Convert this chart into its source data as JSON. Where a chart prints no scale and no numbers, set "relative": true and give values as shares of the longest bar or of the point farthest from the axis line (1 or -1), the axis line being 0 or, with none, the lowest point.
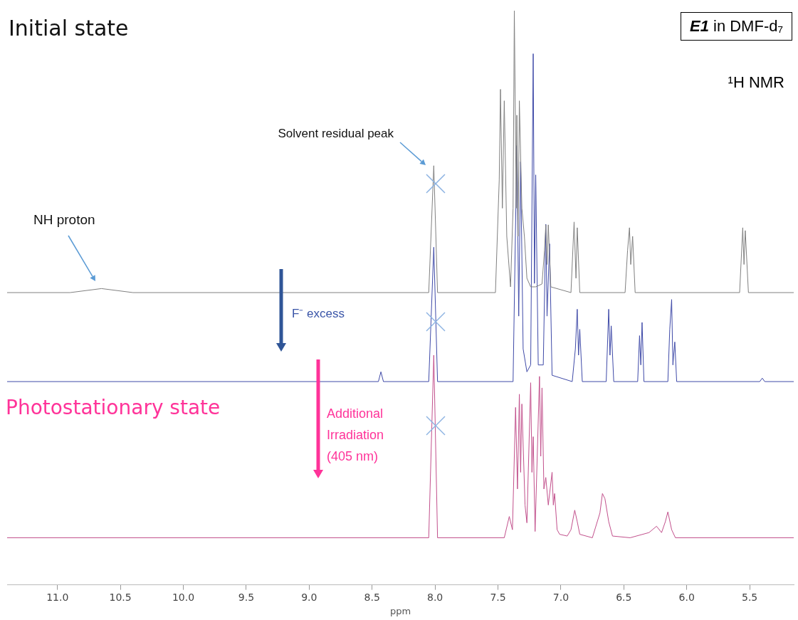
{
  "chart_data": {
    "type": "line",
    "relative": true,
    "xlabel": "ppm",
    "xlim": [
      11.4,
      5.15
    ],
    "xticks": [
      {
        "value": 11,
        "label": "11.0"
      },
      10.5,
      {
        "value": 10,
        "label": "10.0"
      },
      9.5,
      {
        "value": 9,
        "label": "9.0"
      },
      8.5,
      {
        "value": 8,
        "label": "8.0"
      },
      7.5,
      {
        "value": 7,
        "label": "7.0"
      },
      6.5,
      {
        "value": 6,
        "label": "6.0"
      },
      5.5
    ],
    "annotations": [
      "Initial state",
      "E1 in DMF-d₇",
      "¹H NMR",
      "Solvent residual peak",
      "NH proton",
      "F⁻ excess",
      "Photostationary state",
      "Additional Irradiation (405 nm)"
    ],
    "series": [
      {
        "color": "#808080",
        "x": [
          11.4,
          10.9,
          10.65,
          10.4,
          8.05,
          8.01,
          7.98,
          7.52,
          7.49,
          7.48,
          7.465,
          7.45,
          7.43,
          7.4,
          7.38,
          7.37,
          7.355,
          7.35,
          7.34,
          7.33,
          7.31,
          7.29,
          7.27,
          7.24,
          7.2,
          7.15,
          7.13,
          7.12,
          7.11,
          7.1,
          7.08,
          6.92,
          6.895,
          6.88,
          6.87,
          6.85,
          6.49,
          6.47,
          6.455,
          6.445,
          6.43,
          6.41,
          5.58,
          5.555,
          5.545,
          5.535,
          5.51,
          5.15
        ],
        "values": [
          0.509,
          0.509,
          0.516,
          0.509,
          0.509,
          0.73,
          0.509,
          0.509,
          0.705,
          0.863,
          0.656,
          0.843,
          0.607,
          0.519,
          0.656,
          1.0,
          0.656,
          0.818,
          0.607,
          0.843,
          0.656,
          0.607,
          0.534,
          0.519,
          0.519,
          0.524,
          0.583,
          0.627,
          0.558,
          0.627,
          0.519,
          0.509,
          0.632,
          0.534,
          0.622,
          0.509,
          0.509,
          0.583,
          0.622,
          0.558,
          0.607,
          0.509,
          0.509,
          0.622,
          0.558,
          0.617,
          0.509,
          0.509
        ]
      },
      {
        "color": "#3f4aa8",
        "x": [
          11.4,
          8.45,
          8.43,
          8.41,
          8.05,
          8.01,
          7.98,
          7.38,
          7.35,
          7.335,
          7.32,
          7.3,
          7.27,
          7.24,
          7.22,
          7.21,
          7.2,
          7.18,
          7.14,
          7.12,
          7.11,
          7.09,
          7.07,
          6.91,
          6.885,
          6.87,
          6.86,
          6.85,
          6.83,
          6.64,
          6.62,
          6.61,
          6.6,
          6.58,
          6.39,
          6.375,
          6.365,
          6.355,
          6.34,
          6.15,
          6.135,
          6.12,
          6.11,
          6.095,
          6.08,
          5.42,
          5.4,
          5.38,
          5.15
        ],
        "values": [
          0.354,
          0.354,
          0.371,
          0.354,
          0.354,
          0.588,
          0.354,
          0.354,
          0.765,
          0.468,
          0.737,
          0.411,
          0.371,
          0.383,
          0.925,
          0.525,
          0.714,
          0.383,
          0.383,
          0.628,
          0.468,
          0.594,
          0.365,
          0.354,
          0.411,
          0.48,
          0.4,
          0.445,
          0.354,
          0.354,
          0.48,
          0.4,
          0.451,
          0.354,
          0.354,
          0.434,
          0.383,
          0.457,
          0.354,
          0.354,
          0.445,
          0.497,
          0.383,
          0.423,
          0.354,
          0.354,
          0.36,
          0.354,
          0.354
        ]
      },
      {
        "color": "#c2508c",
        "x": [
          11.4,
          8.05,
          8.01,
          7.98,
          7.45,
          7.41,
          7.385,
          7.36,
          7.345,
          7.33,
          7.32,
          7.31,
          7.285,
          7.27,
          7.24,
          7.23,
          7.22,
          7.205,
          7.17,
          7.16,
          7.15,
          7.135,
          7.12,
          7.1,
          7.07,
          7.06,
          7.05,
          7.03,
          7.01,
          6.95,
          6.92,
          6.89,
          6.87,
          6.85,
          6.75,
          6.69,
          6.67,
          6.65,
          6.62,
          6.59,
          6.45,
          6.3,
          6.24,
          6.2,
          6.17,
          6.15,
          6.12,
          6.09,
          5.15
        ],
        "values": [
          0.082,
          0.082,
          0.4,
          0.082,
          0.082,
          0.119,
          0.096,
          0.309,
          0.167,
          0.332,
          0.196,
          0.315,
          0.139,
          0.108,
          0.352,
          0.196,
          0.258,
          0.093,
          0.363,
          0.224,
          0.343,
          0.167,
          0.187,
          0.139,
          0.196,
          0.139,
          0.159,
          0.096,
          0.088,
          0.085,
          0.096,
          0.13,
          0.11,
          0.088,
          0.082,
          0.125,
          0.159,
          0.15,
          0.11,
          0.085,
          0.082,
          0.091,
          0.102,
          0.091,
          0.11,
          0.127,
          0.096,
          0.082,
          0.082
        ]
      }
    ]
  }
}
